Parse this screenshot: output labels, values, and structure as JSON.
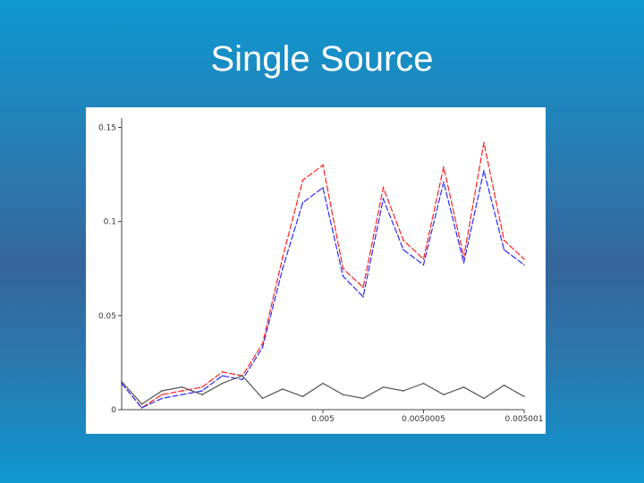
{
  "slide": {
    "title": "Single Source"
  },
  "chart_data": {
    "type": "line",
    "title": "",
    "xlabel": "",
    "ylabel": "",
    "ylim": [
      0,
      0.155
    ],
    "xlim": [
      0.004999,
      0.005001
    ],
    "grid": false,
    "legend": "none",
    "x_tick_labels": [
      "0.005",
      "0.0050005",
      "0.005001"
    ],
    "y_tick_labels": [
      "0",
      "0.05",
      "0.1",
      "0.15"
    ],
    "x_ticks": [
      0.005,
      0.0050005,
      0.005001
    ],
    "y_ticks": [
      0,
      0.05,
      0.1,
      0.15
    ],
    "x": [
      0.004999,
      0.0049991,
      0.0049992,
      0.0049993,
      0.0049994,
      0.0049995,
      0.0049996,
      0.0049997,
      0.0049998,
      0.0049999,
      0.005,
      0.0050001,
      0.0050002,
      0.0050003,
      0.0050004,
      0.0050005,
      0.0050006,
      0.0050007,
      0.0050008,
      0.0050009,
      0.005001
    ],
    "series": [
      {
        "color": "#ff2020",
        "values": [
          0.014,
          0.001,
          0.008,
          0.01,
          0.012,
          0.02,
          0.018,
          0.035,
          0.081,
          0.122,
          0.13,
          0.075,
          0.065,
          0.118,
          0.09,
          0.08,
          0.129,
          0.081,
          0.142,
          0.09,
          0.08
        ]
      },
      {
        "color": "#2a2aff",
        "values": [
          0.014,
          0.001,
          0.006,
          0.008,
          0.01,
          0.018,
          0.016,
          0.033,
          0.075,
          0.11,
          0.118,
          0.071,
          0.06,
          0.112,
          0.085,
          0.077,
          0.121,
          0.078,
          0.127,
          0.085,
          0.077
        ]
      },
      {
        "color": "#555555",
        "values": [
          0.015,
          0.003,
          0.01,
          0.012,
          0.008,
          0.014,
          0.018,
          0.006,
          0.011,
          0.007,
          0.014,
          0.008,
          0.006,
          0.012,
          0.01,
          0.014,
          0.008,
          0.012,
          0.006,
          0.013,
          0.007
        ]
      }
    ]
  },
  "colors": {
    "background_top": "#0e98d0",
    "background_mid": "#35659a",
    "plot_bg": "#ffffff",
    "axis": "#444444"
  }
}
